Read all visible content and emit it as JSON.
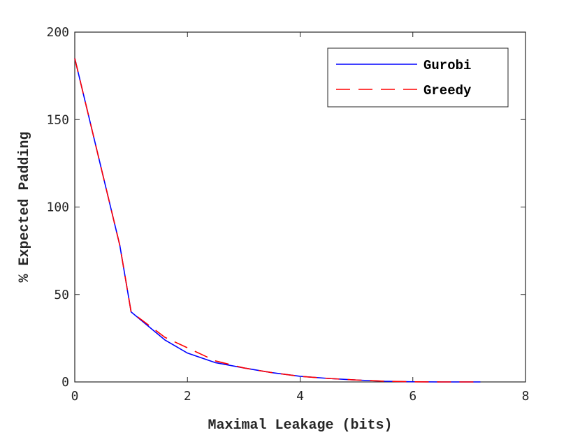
{
  "chart_data": {
    "type": "line",
    "title": "",
    "xlabel": "Maximal Leakage (bits)",
    "ylabel": "% Expected Padding",
    "xlim": [
      0,
      8
    ],
    "ylim": [
      0,
      200
    ],
    "xticks": [
      0,
      2,
      4,
      6,
      8
    ],
    "yticks": [
      0,
      50,
      100,
      150,
      200
    ],
    "grid": false,
    "legend_position": "top-right",
    "series": [
      {
        "name": "Gurobi",
        "color": "#0000ff",
        "style": "solid",
        "x": [
          0,
          0.8,
          1.0,
          1.6,
          2.0,
          2.5,
          3.0,
          3.5,
          4.0,
          4.5,
          5.0,
          5.5,
          6.0,
          6.5,
          7.2
        ],
        "y": [
          185,
          78,
          40,
          24,
          16.5,
          11,
          8,
          5.3,
          3.2,
          2.0,
          1.1,
          0.4,
          0.1,
          0,
          0
        ]
      },
      {
        "name": "Greedy",
        "color": "#ff0000",
        "style": "dashed",
        "x": [
          0,
          0.8,
          1.0,
          1.6,
          2.0,
          2.3,
          2.5,
          3.0,
          3.5,
          4.0,
          4.5,
          5.0,
          5.5,
          6.0,
          6.5,
          7.2
        ],
        "y": [
          185,
          78,
          40,
          25.5,
          19.5,
          15,
          12,
          8,
          5.3,
          3.2,
          2.0,
          1.1,
          0.4,
          0.1,
          0,
          0
        ]
      }
    ]
  }
}
